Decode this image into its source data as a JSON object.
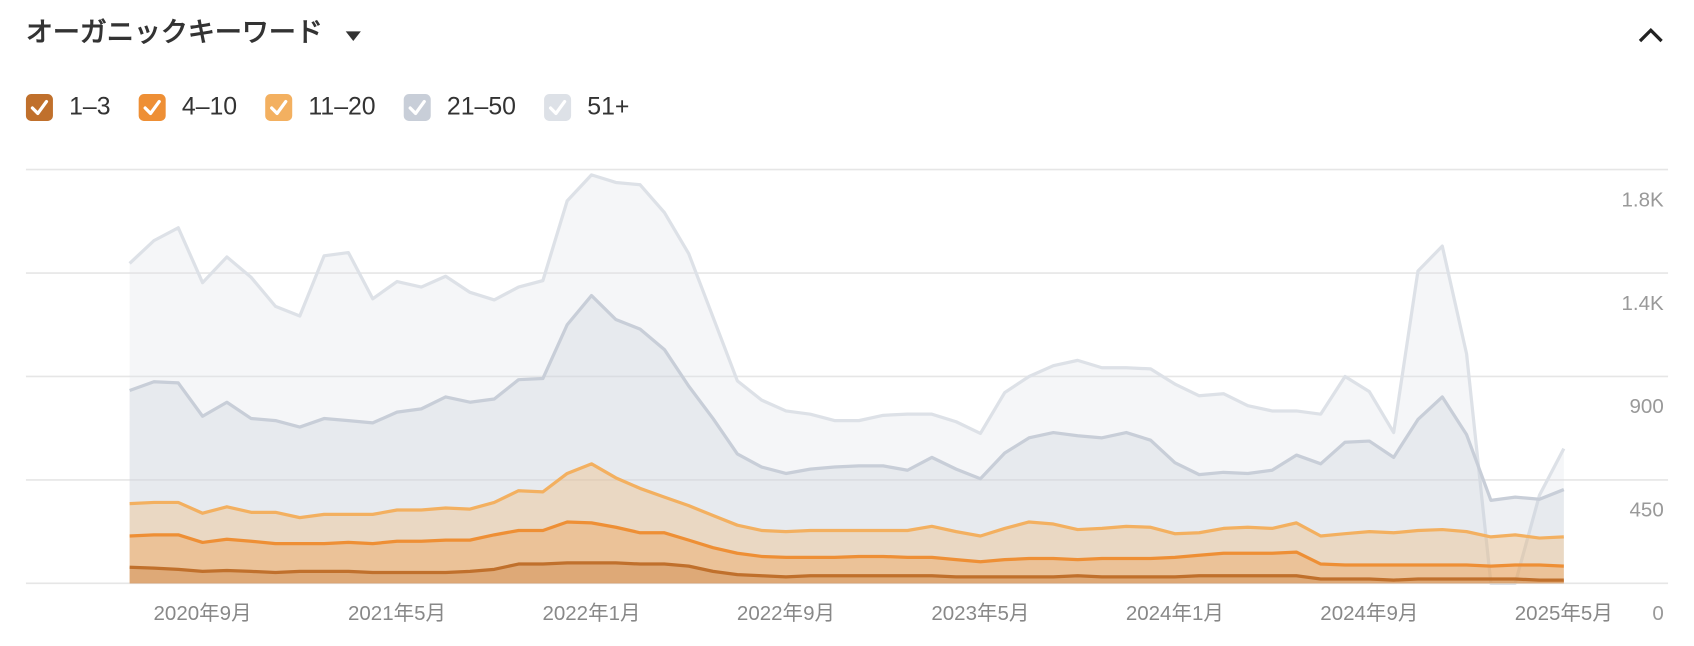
{
  "chart_data": {
    "type": "area",
    "title": "オーガニックキーワード",
    "categories": [
      null,
      null,
      null,
      "2020年9月",
      null,
      null,
      null,
      null,
      null,
      null,
      null,
      "2021年5月",
      null,
      null,
      null,
      null,
      null,
      null,
      null,
      "2022年1月",
      null,
      null,
      null,
      null,
      null,
      null,
      null,
      "2022年9月",
      null,
      null,
      null,
      null,
      null,
      null,
      null,
      "2023年5月",
      null,
      null,
      null,
      null,
      null,
      null,
      null,
      "2024年1月",
      null,
      null,
      null,
      null,
      null,
      null,
      null,
      "2024年9月",
      null,
      null,
      null,
      null,
      null,
      null,
      null,
      "2025年5月"
    ],
    "series": [
      {
        "name": "1–3",
        "color": "#c0702c",
        "values": [
          70,
          66,
          61,
          52,
          56,
          52,
          47,
          52,
          52,
          52,
          47,
          47,
          47,
          47,
          52,
          61,
          84,
          84,
          89,
          89,
          89,
          84,
          84,
          75,
          52,
          38,
          33,
          28,
          33,
          33,
          33,
          33,
          33,
          33,
          28,
          28,
          28,
          28,
          28,
          33,
          28,
          28,
          28,
          28,
          33,
          33,
          33,
          33,
          33,
          19,
          19,
          19,
          14,
          19,
          19,
          19,
          19,
          19,
          14,
          14
        ]
      },
      {
        "name": "4–10",
        "color": "#ee8f35",
        "values": [
          206,
          211,
          211,
          178,
          192,
          183,
          173,
          173,
          173,
          178,
          173,
          183,
          183,
          188,
          188,
          211,
          230,
          230,
          267,
          263,
          244,
          220,
          220,
          188,
          155,
          131,
          117,
          113,
          113,
          113,
          117,
          117,
          113,
          113,
          103,
          94,
          103,
          108,
          108,
          103,
          108,
          108,
          108,
          113,
          122,
          131,
          131,
          131,
          136,
          84,
          80,
          80,
          80,
          80,
          80,
          80,
          75,
          80,
          80,
          75
        ]
      },
      {
        "name": "11–20",
        "color": "#f3b060",
        "values": [
          347,
          352,
          352,
          305,
          333,
          309,
          309,
          286,
          300,
          300,
          300,
          319,
          319,
          328,
          323,
          352,
          403,
          398,
          478,
          520,
          459,
          413,
          375,
          338,
          295,
          253,
          230,
          225,
          230,
          230,
          230,
          230,
          230,
          248,
          225,
          206,
          239,
          267,
          258,
          234,
          239,
          248,
          244,
          216,
          220,
          239,
          244,
          239,
          263,
          206,
          216,
          225,
          220,
          230,
          234,
          225,
          202,
          211,
          197,
          202
        ]
      },
      {
        "name": "21–50",
        "color": "#c8ced8",
        "values": [
          839,
          877,
          872,
          727,
          788,
          717,
          708,
          680,
          717,
          708,
          698,
          745,
          759,
          811,
          788,
          802,
          886,
          891,
          1125,
          1252,
          1148,
          1106,
          1017,
          858,
          717,
          563,
          506,
          478,
          497,
          506,
          511,
          511,
          492,
          548,
          497,
          455,
          567,
          633,
          656,
          642,
          633,
          656,
          623,
          525,
          473,
          483,
          478,
          492,
          558,
          520,
          614,
          619,
          548,
          713,
          811,
          647,
          361,
          375,
          366,
          408
        ]
      },
      {
        "name": "51+",
        "color": "#dde1e7",
        "values": [
          1392,
          1491,
          1547,
          1308,
          1420,
          1331,
          1205,
          1163,
          1425,
          1439,
          1238,
          1313,
          1289,
          1336,
          1266,
          1233,
          1289,
          1317,
          1664,
          1777,
          1744,
          1734,
          1613,
          1434,
          1158,
          881,
          797,
          750,
          736,
          708,
          708,
          731,
          736,
          736,
          703,
          652,
          830,
          900,
          947,
          970,
          938,
          938,
          933,
          867,
          816,
          825,
          773,
          750,
          750,
          736,
          900,
          834,
          656,
          1359,
          1467,
          998,
          0,
          0,
          384,
          586
        ]
      }
    ],
    "ylim": [
      0,
      1800
    ],
    "yticks": [
      0,
      450,
      900,
      {
        "value": 1350,
        "label": "1.4K"
      },
      {
        "value": 1800,
        "label": "1.8K"
      }
    ],
    "grid": true
  }
}
